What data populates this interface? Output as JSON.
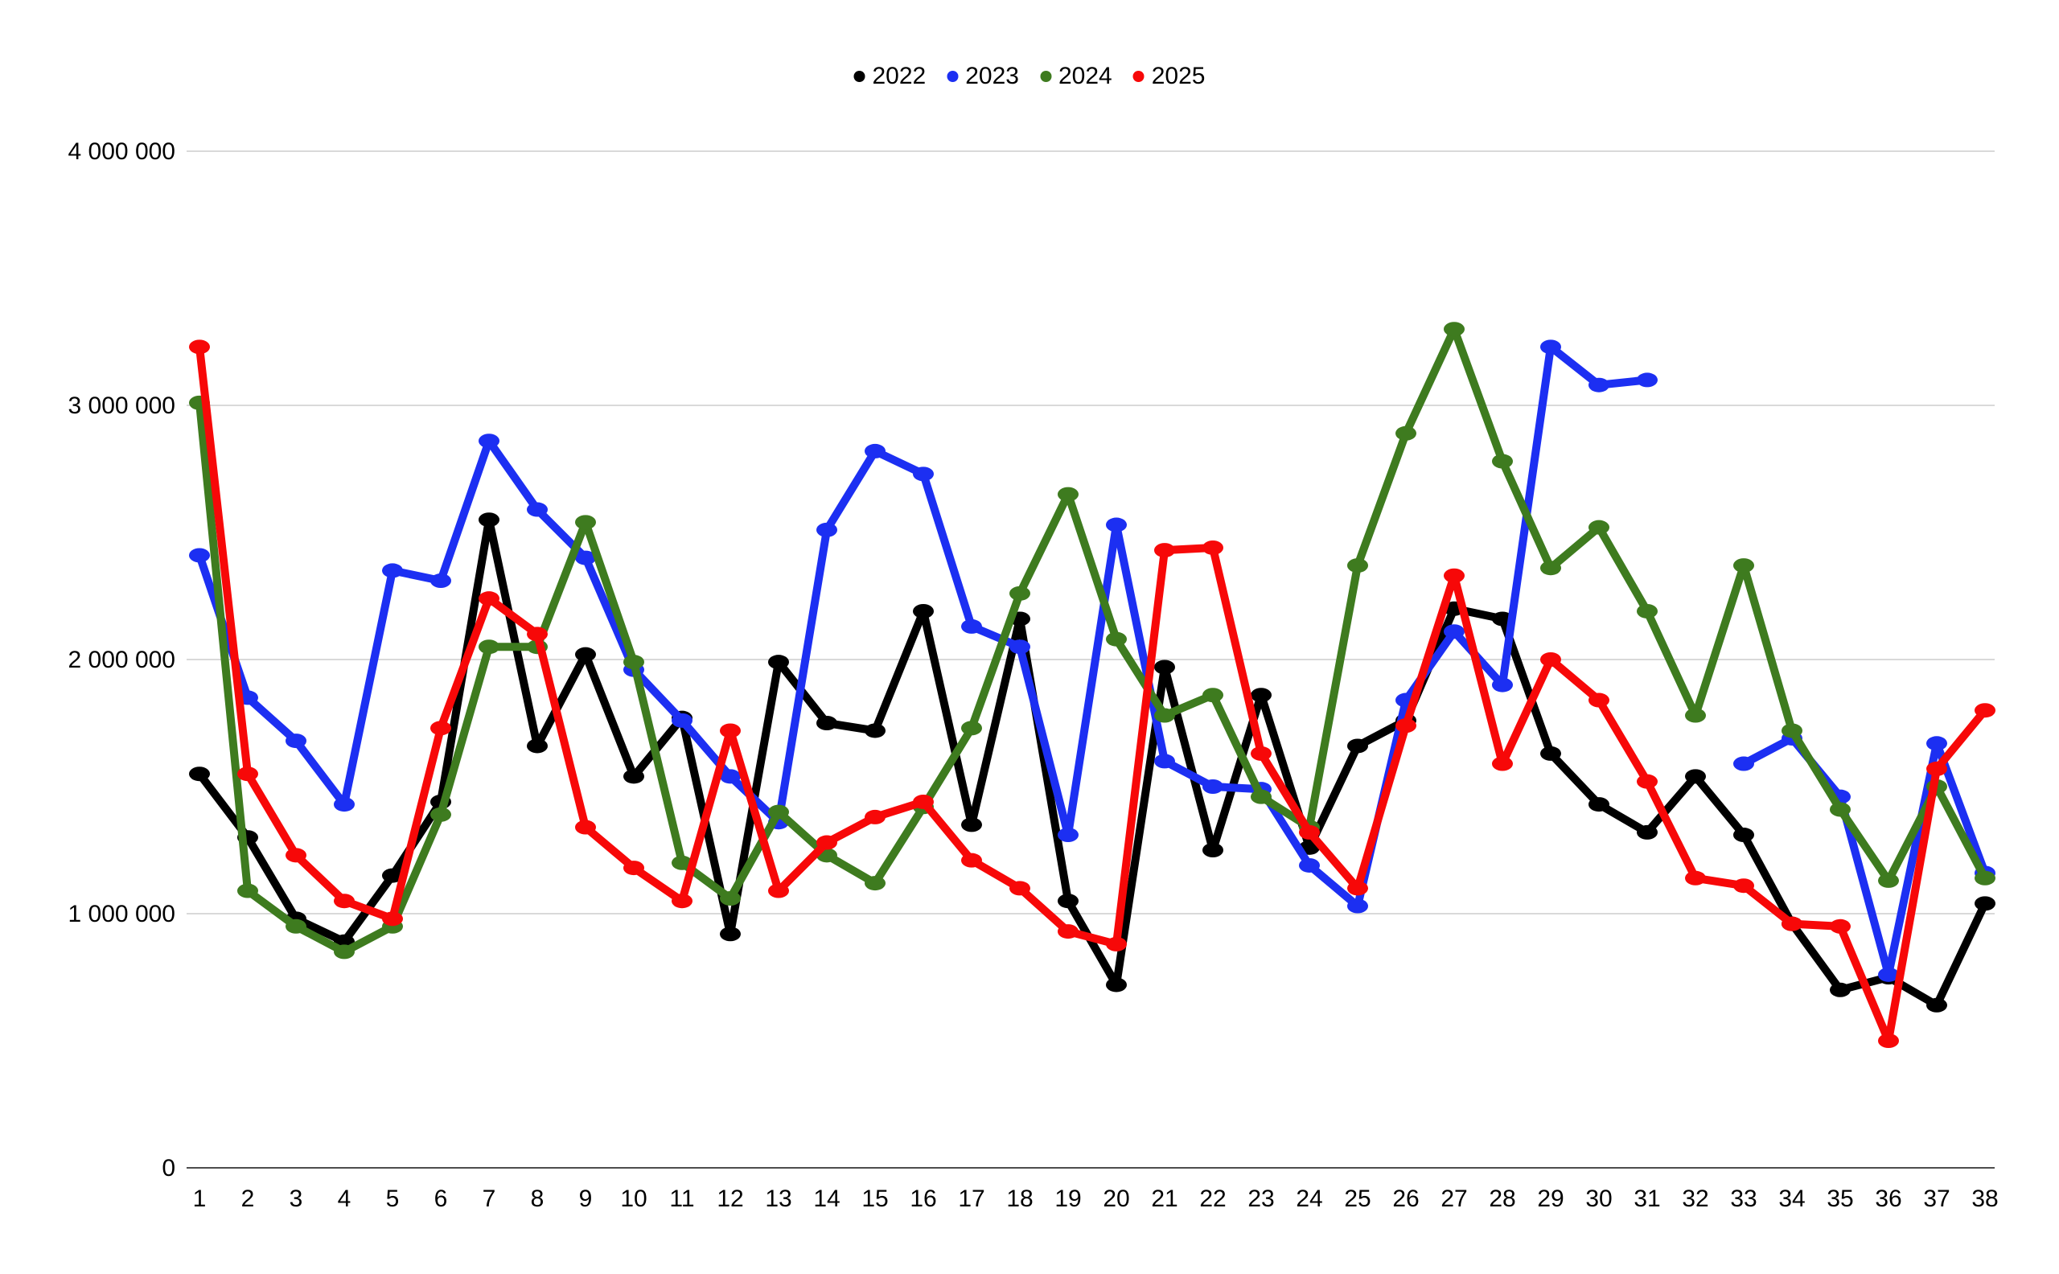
{
  "chart_data": {
    "type": "line",
    "title": "",
    "xlabel": "",
    "ylabel": "",
    "x": [
      1,
      2,
      3,
      4,
      5,
      6,
      7,
      8,
      9,
      10,
      11,
      12,
      13,
      14,
      15,
      16,
      17,
      18,
      19,
      20,
      21,
      22,
      23,
      24,
      25,
      26,
      27,
      28,
      29,
      30,
      31,
      32,
      33,
      34,
      35,
      36,
      37,
      38
    ],
    "ylim": [
      0,
      4000000
    ],
    "grid": true,
    "legend_position": "top-center",
    "y_ticks": [
      {
        "value": 0,
        "label": "0"
      },
      {
        "value": 1000000,
        "label": "1 000 000"
      },
      {
        "value": 2000000,
        "label": "2 000 000"
      },
      {
        "value": 3000000,
        "label": "3 000 000"
      },
      {
        "value": 4000000,
        "label": "4 000 000"
      }
    ],
    "series": [
      {
        "name": "2022",
        "color": "#000000",
        "values": [
          1550000,
          1300000,
          980000,
          890000,
          1150000,
          1440000,
          2550000,
          1660000,
          2020000,
          1540000,
          1770000,
          920000,
          1990000,
          1750000,
          1720000,
          2190000,
          1350000,
          2160000,
          1050000,
          720000,
          1970000,
          1250000,
          1860000,
          1260000,
          1660000,
          1760000,
          2200000,
          2160000,
          1630000,
          1430000,
          1320000,
          1540000,
          1310000,
          960000,
          700000,
          750000,
          640000,
          1040000
        ]
      },
      {
        "name": "2023",
        "color": "#1c2ff2",
        "values": [
          2410000,
          1850000,
          1680000,
          1430000,
          2350000,
          2310000,
          2860000,
          2590000,
          2400000,
          1960000,
          1760000,
          1540000,
          1360000,
          2510000,
          2820000,
          2730000,
          2130000,
          2050000,
          1310000,
          2530000,
          1600000,
          1500000,
          1490000,
          1190000,
          1030000,
          1840000,
          2110000,
          1900000,
          3230000,
          3080000,
          3100000,
          null,
          1590000,
          1690000,
          1460000,
          760000,
          1670000,
          1160000
        ]
      },
      {
        "name": "2024",
        "color": "#3e7b1f",
        "values": [
          3010000,
          1090000,
          950000,
          850000,
          950000,
          1390000,
          2050000,
          2050000,
          2540000,
          1990000,
          1200000,
          1060000,
          1400000,
          1230000,
          1120000,
          1420000,
          1730000,
          2260000,
          2650000,
          2080000,
          1780000,
          1860000,
          1460000,
          1340000,
          2370000,
          2890000,
          3300000,
          2780000,
          2360000,
          2520000,
          2190000,
          1780000,
          2370000,
          1720000,
          1410000,
          1130000,
          1500000,
          1140000
        ]
      },
      {
        "name": "2025",
        "color": "#f70808",
        "values": [
          3230000,
          1550000,
          1230000,
          1050000,
          980000,
          1730000,
          2240000,
          2100000,
          1340000,
          1180000,
          1050000,
          1720000,
          1090000,
          1280000,
          1380000,
          1440000,
          1210000,
          1100000,
          930000,
          880000,
          2430000,
          2440000,
          1630000,
          1320000,
          1100000,
          1740000,
          2330000,
          1590000,
          2000000,
          1840000,
          1520000,
          1140000,
          1110000,
          960000,
          950000,
          500000,
          1570000,
          1800000
        ]
      }
    ],
    "style": {
      "grid_color": "#d9d9d9",
      "axis_color": "#4d4d4d",
      "tick_label_color": "#000000",
      "background": "#ffffff"
    }
  }
}
